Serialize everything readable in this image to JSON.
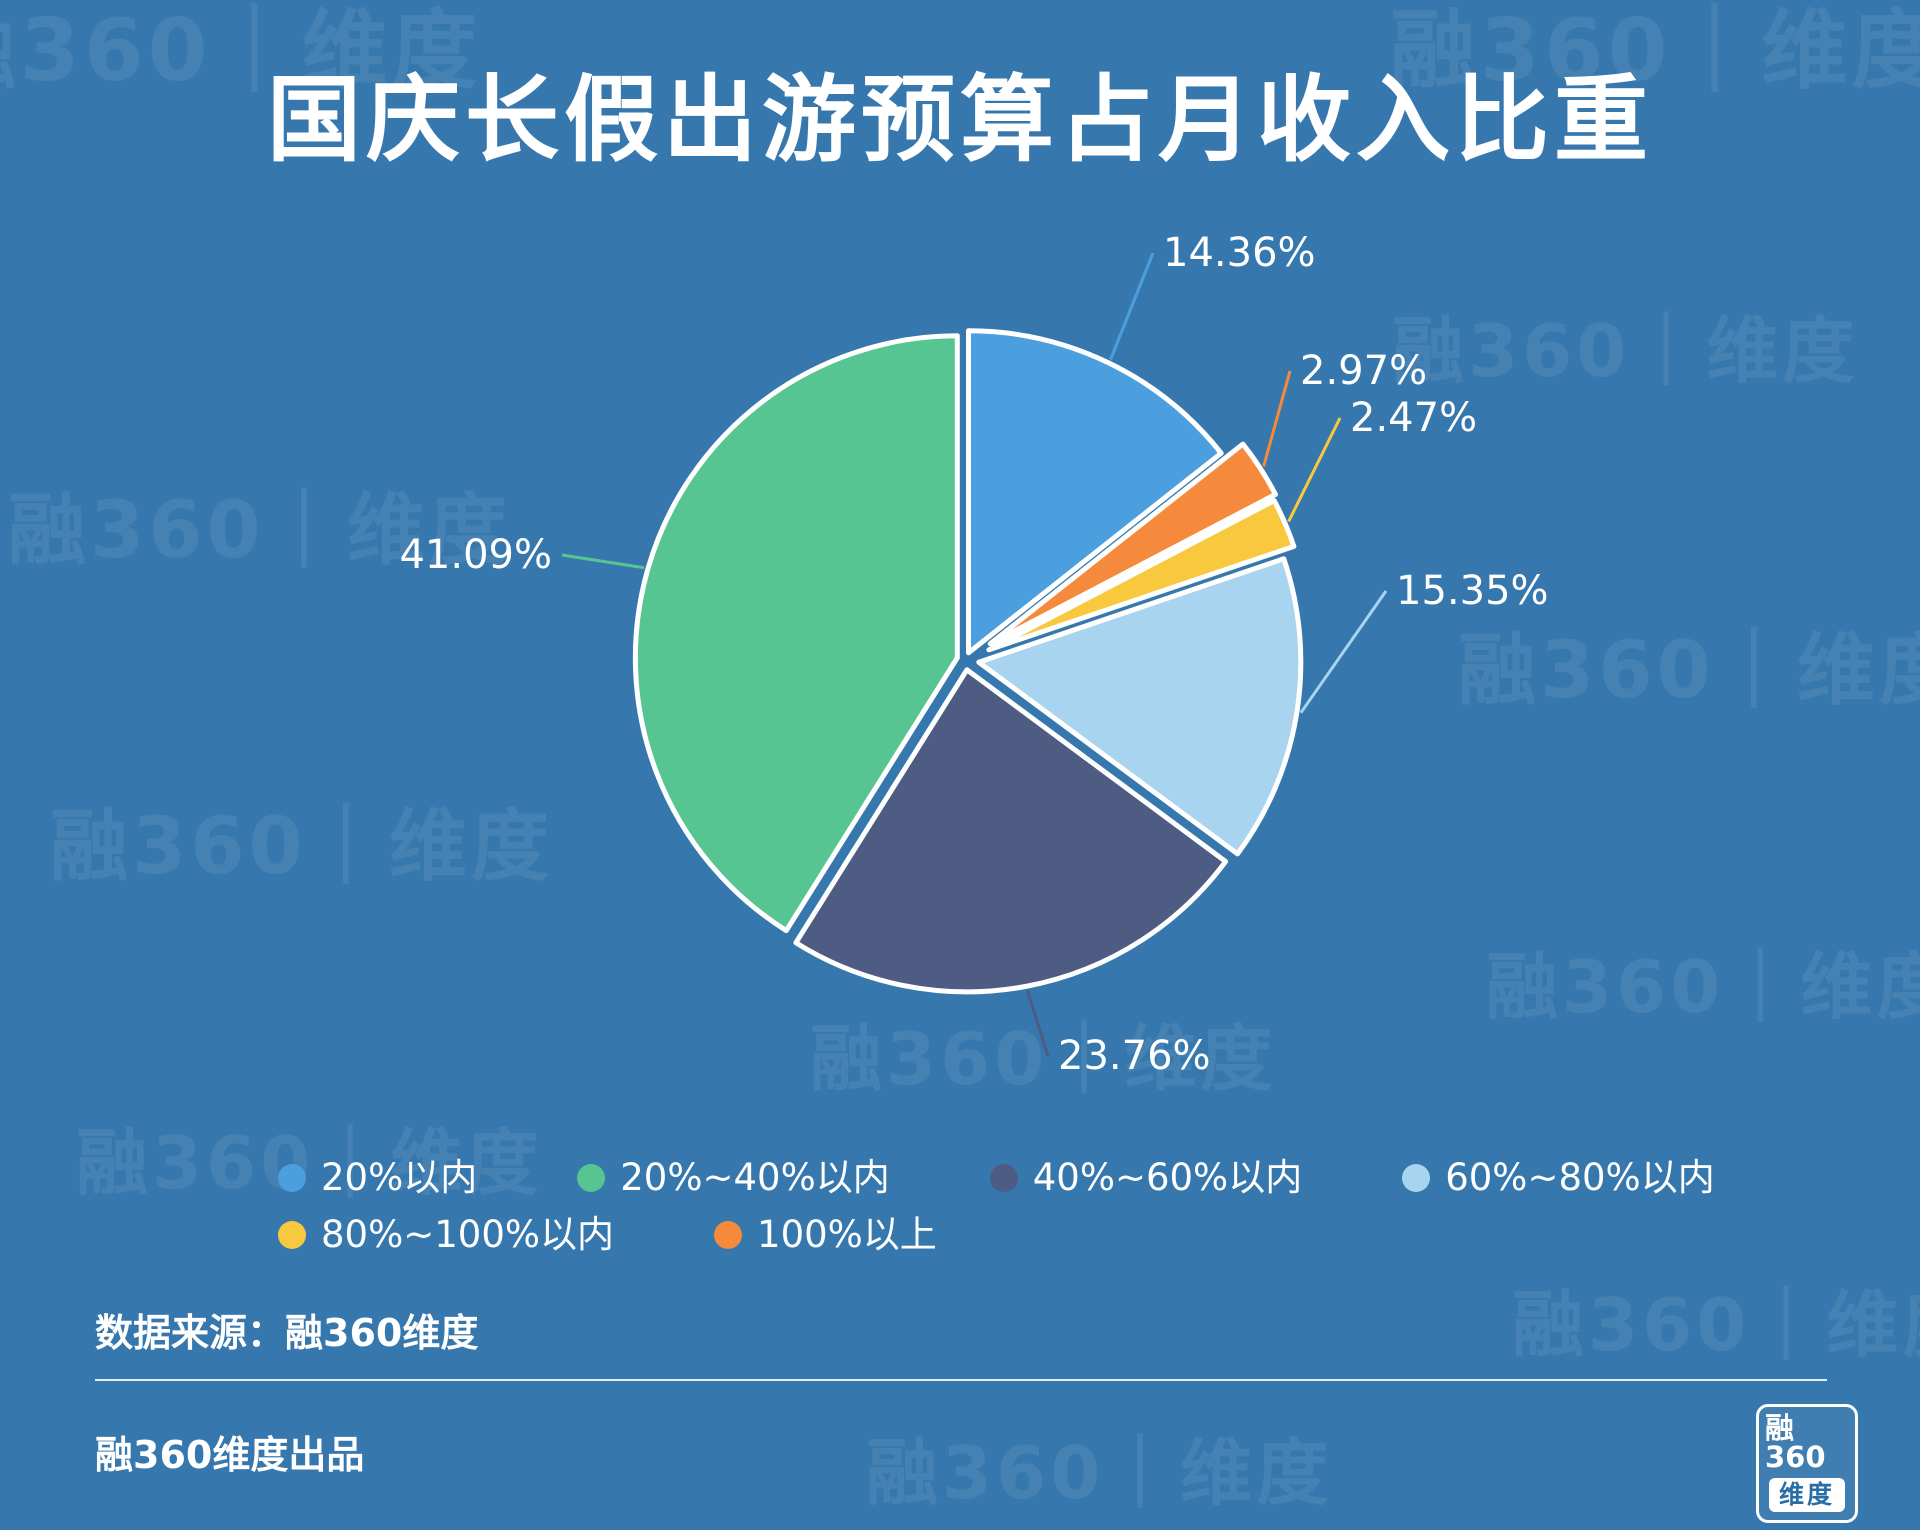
{
  "title": "国庆长假出游预算占月收入比重",
  "chart_data": {
    "type": "pie",
    "title": "国庆长假出游预算占月收入比重",
    "unit": "%",
    "start_angle_deg": 0,
    "direction": "clockwise",
    "segments": [
      {
        "label": "20%以内",
        "value": 14.36,
        "display": "14.36%",
        "color": "#4c9fde"
      },
      {
        "label": "100%以上",
        "value": 2.97,
        "display": "2.97%",
        "color": "#f5893c"
      },
      {
        "label": "80%~100%以内",
        "value": 2.47,
        "display": "2.47%",
        "color": "#f8c93f"
      },
      {
        "label": "60%~80%以内",
        "value": 15.35,
        "display": "15.35%",
        "color": "#a9d4f0"
      },
      {
        "label": "40%~60%以内",
        "value": 23.76,
        "display": "23.76%",
        "color": "#4e5c84"
      },
      {
        "label": "20%~40%以内",
        "value": 41.09,
        "display": "41.09%",
        "color": "#56c591"
      }
    ]
  },
  "legend": {
    "items": [
      {
        "label": "20%以内",
        "color": "#4c9fde"
      },
      {
        "label": "20%~40%以内",
        "color": "#56c591"
      },
      {
        "label": "40%~60%以内",
        "color": "#4e5c84"
      },
      {
        "label": "60%~80%以内",
        "color": "#a9d4f0"
      },
      {
        "label": "80%~100%以内",
        "color": "#f8c93f"
      },
      {
        "label": "100%以上",
        "color": "#f5893c"
      }
    ]
  },
  "footer": {
    "source": "数据来源：融360维度",
    "producer": "融360维度出品"
  },
  "logo": {
    "top": "融360",
    "bottom": "维度"
  },
  "watermark": {
    "text": "融360｜维度"
  }
}
